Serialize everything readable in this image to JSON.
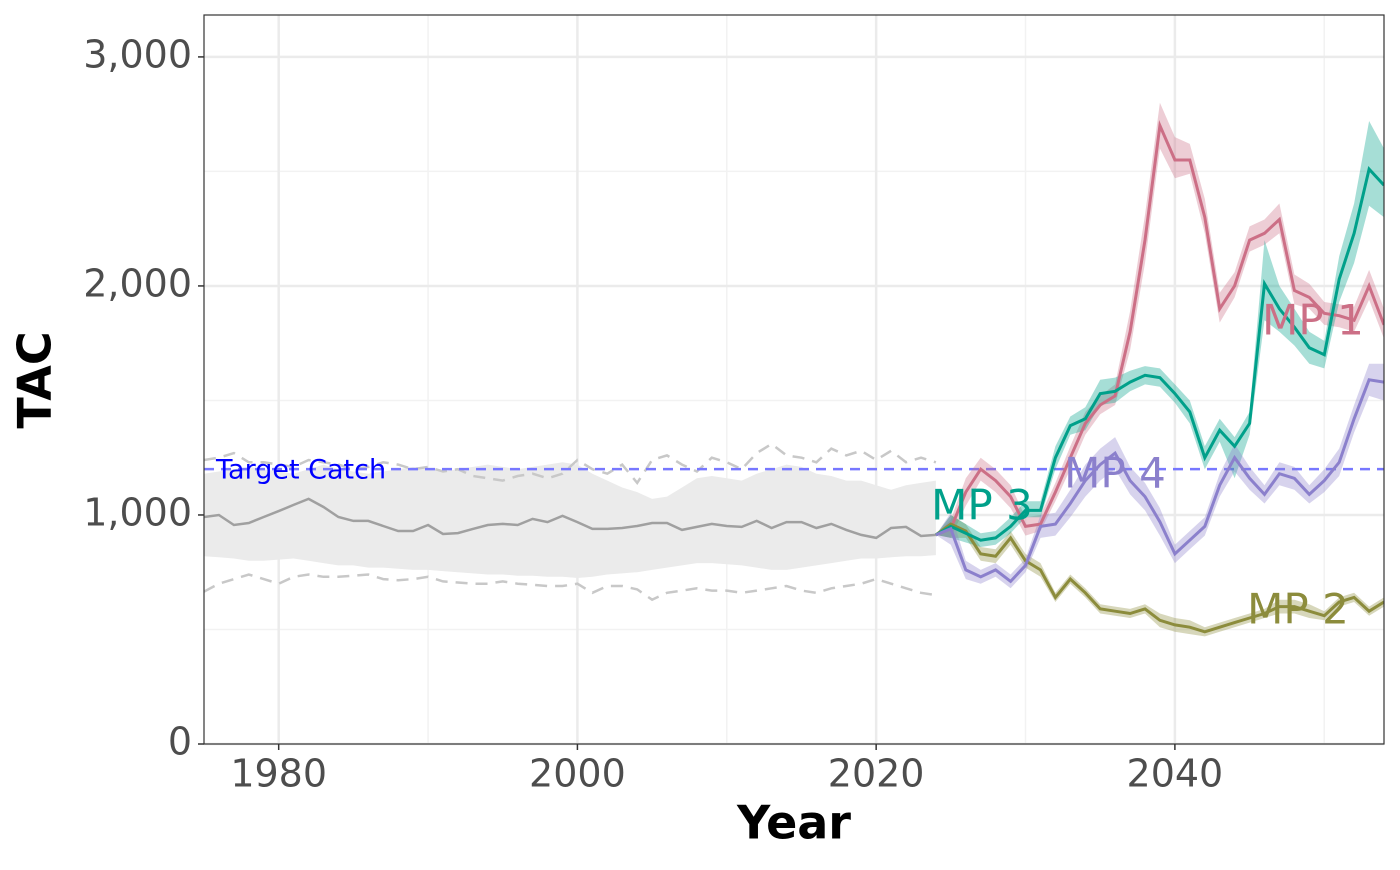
{
  "chart_data": {
    "type": "line",
    "xlabel": "Year",
    "ylabel": "TAC",
    "xlim": [
      1975,
      2054
    ],
    "ylim": [
      0,
      3183
    ],
    "xticks": [
      1980,
      2000,
      2020,
      2040
    ],
    "x_minor_ticks": [
      1990,
      2010,
      2030,
      2050
    ],
    "yticks": [
      0,
      {
        "value": 1000,
        "label": "1,000"
      },
      {
        "value": 2000,
        "label": "2,000"
      },
      {
        "value": 3000,
        "label": "3,000"
      }
    ],
    "y_minor_ticks": [
      500,
      1500,
      2500
    ],
    "grid": true,
    "reference_line": {
      "value": 1200,
      "label": "Target Catch",
      "color": "#7777ff",
      "label_color": "#0000ff"
    },
    "historical": {
      "x": [
        1975,
        1976,
        1977,
        1978,
        1979,
        1980,
        1981,
        1982,
        1983,
        1984,
        1985,
        1986,
        1987,
        1988,
        1989,
        1990,
        1991,
        1992,
        1993,
        1994,
        1995,
        1996,
        1997,
        1998,
        1999,
        2000,
        2001,
        2002,
        2003,
        2004,
        2005,
        2006,
        2007,
        2008,
        2009,
        2010,
        2011,
        2012,
        2013,
        2014,
        2015,
        2016,
        2017,
        2018,
        2019,
        2020,
        2021,
        2022,
        2023,
        2024
      ],
      "color": "#a0a0a0",
      "band_color": "#ebebeb",
      "dashed_color": "#c8c8c8",
      "median": [
        991,
        1000,
        956,
        965,
        991,
        1017,
        1044,
        1070,
        1035,
        991,
        974,
        974,
        952,
        930,
        930,
        956,
        917,
        921,
        939,
        956,
        961,
        956,
        983,
        969,
        996,
        969,
        939,
        939,
        943,
        952,
        965,
        965,
        935,
        948,
        961,
        952,
        948,
        974,
        943,
        969,
        969,
        943,
        961,
        935,
        913,
        900,
        943,
        948,
        908,
        913
      ],
      "lower": [
        820,
        815,
        810,
        800,
        800,
        805,
        810,
        800,
        790,
        780,
        780,
        770,
        770,
        765,
        760,
        760,
        755,
        750,
        745,
        740,
        740,
        735,
        735,
        730,
        730,
        725,
        730,
        740,
        745,
        750,
        760,
        770,
        780,
        790,
        790,
        785,
        780,
        770,
        760,
        760,
        770,
        780,
        790,
        800,
        810,
        810,
        815,
        820,
        820,
        825
      ],
      "upper": [
        1180,
        1190,
        1200,
        1210,
        1200,
        1190,
        1180,
        1200,
        1220,
        1200,
        1190,
        1180,
        1190,
        1200,
        1210,
        1200,
        1190,
        1200,
        1210,
        1220,
        1210,
        1200,
        1210,
        1220,
        1230,
        1220,
        1180,
        1150,
        1120,
        1100,
        1070,
        1080,
        1120,
        1160,
        1170,
        1160,
        1150,
        1180,
        1200,
        1220,
        1210,
        1180,
        1170,
        1150,
        1150,
        1130,
        1110,
        1130,
        1140,
        1150
      ],
      "dashed_upper": [
        1240,
        1250,
        1270,
        1230,
        1230,
        1220,
        1210,
        1240,
        1230,
        1220,
        1200,
        1210,
        1230,
        1220,
        1200,
        1210,
        1190,
        1200,
        1170,
        1160,
        1150,
        1170,
        1180,
        1160,
        1180,
        1240,
        1200,
        1180,
        1220,
        1140,
        1240,
        1260,
        1220,
        1190,
        1250,
        1230,
        1200,
        1270,
        1310,
        1260,
        1250,
        1230,
        1290,
        1260,
        1280,
        1240,
        1280,
        1230,
        1250,
        1230
      ],
      "dashed_lower": [
        665,
        700,
        720,
        740,
        720,
        700,
        730,
        740,
        730,
        730,
        735,
        740,
        720,
        715,
        720,
        730,
        710,
        705,
        700,
        700,
        710,
        700,
        695,
        690,
        690,
        700,
        660,
        690,
        690,
        675,
        630,
        660,
        670,
        680,
        670,
        670,
        660,
        670,
        680,
        690,
        670,
        660,
        680,
        690,
        700,
        720,
        700,
        680,
        660,
        650
      ]
    },
    "projections": {
      "x": [
        2024,
        2025,
        2026,
        2027,
        2028,
        2029,
        2030,
        2031,
        2032,
        2033,
        2034,
        2035,
        2036,
        2037,
        2038,
        2039,
        2040,
        2041,
        2042,
        2043,
        2044,
        2045,
        2046,
        2047,
        2048,
        2049,
        2050,
        2051,
        2052,
        2053,
        2054
      ],
      "series": [
        {
          "name": "MP 1",
          "color": "#cc6f86",
          "values": [
            913,
            940,
            1100,
            1200,
            1150,
            1080,
            950,
            960,
            1100,
            1250,
            1400,
            1480,
            1520,
            1800,
            2200,
            2700,
            2550,
            2550,
            2300,
            1900,
            2000,
            2200,
            2230,
            2290,
            1980,
            1950,
            1880,
            1870,
            1850,
            2000,
            1830
          ],
          "lower": [
            913,
            900,
            1040,
            1150,
            1100,
            1030,
            910,
            930,
            1060,
            1200,
            1350,
            1440,
            1480,
            1720,
            2100,
            2600,
            2470,
            2490,
            2230,
            1840,
            1950,
            2150,
            2180,
            2230,
            1920,
            1900,
            1830,
            1820,
            1800,
            1940,
            1770
          ],
          "upper": [
            913,
            980,
            1160,
            1250,
            1200,
            1130,
            990,
            1000,
            1140,
            1300,
            1450,
            1520,
            1570,
            1890,
            2310,
            2800,
            2650,
            2620,
            2380,
            1970,
            2060,
            2260,
            2290,
            2360,
            2050,
            2010,
            1930,
            1920,
            1910,
            2070,
            1900
          ]
        },
        {
          "name": "MP 2",
          "color": "#8c8c3c",
          "values": [
            913,
            960,
            930,
            830,
            820,
            900,
            800,
            760,
            640,
            720,
            660,
            590,
            580,
            570,
            590,
            540,
            520,
            510,
            490,
            510,
            530,
            550,
            570,
            600,
            600,
            580,
            560,
            620,
            640,
            580,
            620
          ],
          "lower": [
            913,
            900,
            900,
            800,
            790,
            870,
            770,
            730,
            620,
            700,
            640,
            570,
            560,
            550,
            570,
            510,
            490,
            480,
            470,
            490,
            510,
            530,
            550,
            570,
            570,
            550,
            540,
            600,
            620,
            560,
            600
          ],
          "upper": [
            913,
            1000,
            960,
            860,
            850,
            930,
            830,
            790,
            660,
            740,
            680,
            610,
            600,
            590,
            610,
            570,
            550,
            540,
            510,
            530,
            550,
            570,
            590,
            630,
            630,
            610,
            580,
            640,
            660,
            600,
            640
          ]
        },
        {
          "name": "MP 3",
          "color": "#00a08a",
          "values": [
            913,
            950,
            920,
            890,
            900,
            950,
            1020,
            1020,
            1250,
            1390,
            1420,
            1530,
            1540,
            1580,
            1610,
            1600,
            1530,
            1450,
            1250,
            1370,
            1300,
            1400,
            2010,
            1900,
            1820,
            1730,
            1700,
            2030,
            2230,
            2510,
            2440
          ],
          "lower": [
            913,
            900,
            880,
            860,
            870,
            920,
            990,
            990,
            1200,
            1350,
            1370,
            1480,
            1490,
            1540,
            1570,
            1560,
            1490,
            1400,
            1200,
            1320,
            1160,
            1350,
            1850,
            1800,
            1740,
            1660,
            1640,
            1930,
            2100,
            2350,
            2300
          ],
          "upper": [
            913,
            1000,
            960,
            920,
            930,
            990,
            1060,
            1060,
            1300,
            1430,
            1470,
            1590,
            1600,
            1630,
            1650,
            1640,
            1570,
            1500,
            1300,
            1420,
            1340,
            1450,
            2200,
            2000,
            1900,
            1800,
            1760,
            2130,
            2360,
            2720,
            2600
          ]
        },
        {
          "name": "MP 4",
          "color": "#8b80cc",
          "values": [
            913,
            940,
            760,
            730,
            760,
            710,
            780,
            950,
            960,
            1050,
            1150,
            1220,
            1270,
            1150,
            1080,
            970,
            830,
            890,
            950,
            1130,
            1250,
            1160,
            1090,
            1180,
            1160,
            1090,
            1150,
            1230,
            1420,
            1590,
            1580
          ],
          "lower": [
            913,
            870,
            720,
            700,
            730,
            680,
            750,
            900,
            910,
            990,
            1080,
            1150,
            1200,
            1090,
            1020,
            910,
            790,
            850,
            910,
            1080,
            1190,
            1110,
            1050,
            1130,
            1110,
            1050,
            1100,
            1170,
            1360,
            1520,
            1500
          ],
          "upper": [
            913,
            1010,
            800,
            760,
            790,
            740,
            810,
            1000,
            1010,
            1110,
            1220,
            1290,
            1340,
            1210,
            1140,
            1030,
            870,
            930,
            990,
            1180,
            1310,
            1210,
            1130,
            1230,
            1210,
            1130,
            1200,
            1290,
            1480,
            1660,
            1660
          ]
        }
      ]
    }
  }
}
